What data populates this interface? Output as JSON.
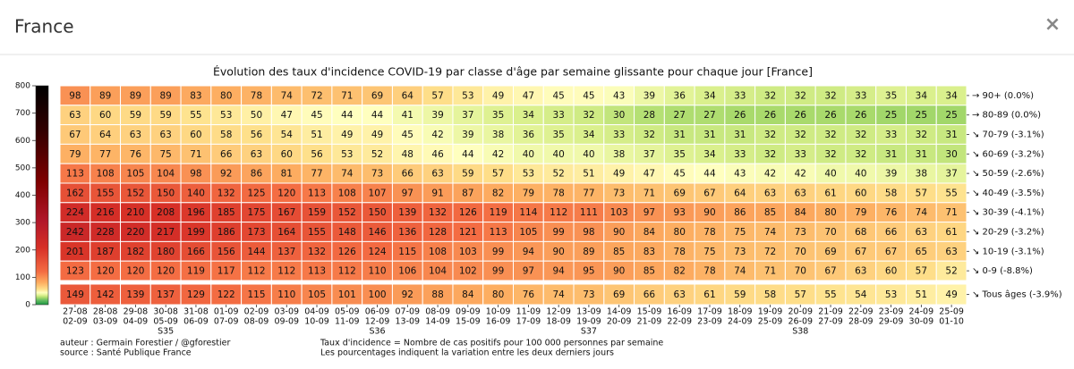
{
  "window": {
    "title": "France",
    "close": "×"
  },
  "chart_data": {
    "type": "heatmap",
    "title": "Évolution des taux d'incidence COVID-19 par classe d'âge par semaine glissante pour chaque jour [France]",
    "categories": [
      [
        "27-08",
        "02-09"
      ],
      [
        "28-08",
        "03-09"
      ],
      [
        "29-08",
        "04-09"
      ],
      [
        "30-08",
        "05-09"
      ],
      [
        "31-08",
        "06-09"
      ],
      [
        "01-09",
        "07-09"
      ],
      [
        "02-09",
        "08-09"
      ],
      [
        "03-09",
        "09-09"
      ],
      [
        "04-09",
        "10-09"
      ],
      [
        "05-09",
        "11-09"
      ],
      [
        "06-09",
        "12-09"
      ],
      [
        "07-09",
        "13-09"
      ],
      [
        "08-09",
        "14-09"
      ],
      [
        "09-09",
        "15-09"
      ],
      [
        "10-09",
        "16-09"
      ],
      [
        "11-09",
        "17-09"
      ],
      [
        "12-09",
        "18-09"
      ],
      [
        "13-09",
        "19-09"
      ],
      [
        "14-09",
        "20-09"
      ],
      [
        "15-09",
        "21-09"
      ],
      [
        "16-09",
        "22-09"
      ],
      [
        "17-09",
        "23-09"
      ],
      [
        "18-09",
        "24-09"
      ],
      [
        "19-09",
        "25-09"
      ],
      [
        "20-09",
        "26-09"
      ],
      [
        "21-09",
        "27-09"
      ],
      [
        "22-09",
        "28-09"
      ],
      [
        "23-09",
        "29-09"
      ],
      [
        "24-09",
        "30-09"
      ],
      [
        "25-09",
        "01-10"
      ]
    ],
    "week_labels": [
      null,
      null,
      null,
      "S35",
      null,
      null,
      null,
      null,
      null,
      null,
      "S36",
      null,
      null,
      null,
      null,
      null,
      null,
      "S37",
      null,
      null,
      null,
      null,
      null,
      null,
      "S38",
      null,
      null,
      null,
      null,
      null
    ],
    "rows": [
      "→ 90+ (0.0%)",
      "→ 80-89 (0.0%)",
      "↘ 70-79 (-3.1%)",
      "↘ 60-69 (-3.2%)",
      "↘ 50-59 (-2.6%)",
      "↘ 40-49 (-3.5%)",
      "↘ 30-39 (-4.1%)",
      "↘ 20-29 (-3.2%)",
      "↘ 10-19 (-3.1%)",
      "↘ 0-9 (-8.8%)"
    ],
    "values": [
      [
        98,
        89,
        89,
        89,
        83,
        80,
        78,
        74,
        72,
        71,
        69,
        64,
        57,
        53,
        49,
        47,
        45,
        45,
        43,
        39,
        36,
        34,
        33,
        32,
        32,
        32,
        33,
        35,
        34,
        34
      ],
      [
        63,
        60,
        59,
        59,
        55,
        53,
        50,
        47,
        45,
        44,
        44,
        41,
        39,
        37,
        35,
        34,
        33,
        32,
        30,
        28,
        27,
        27,
        26,
        26,
        26,
        26,
        26,
        25,
        25,
        25
      ],
      [
        67,
        64,
        63,
        63,
        60,
        58,
        56,
        54,
        51,
        49,
        49,
        45,
        42,
        39,
        38,
        36,
        35,
        34,
        33,
        32,
        31,
        31,
        31,
        32,
        32,
        32,
        32,
        33,
        32,
        31
      ],
      [
        79,
        77,
        76,
        75,
        71,
        66,
        63,
        60,
        56,
        53,
        52,
        48,
        46,
        44,
        42,
        40,
        40,
        40,
        38,
        37,
        35,
        34,
        33,
        32,
        33,
        32,
        32,
        31,
        31,
        30
      ],
      [
        113,
        108,
        105,
        104,
        98,
        92,
        86,
        81,
        77,
        74,
        73,
        66,
        63,
        59,
        57,
        53,
        52,
        51,
        49,
        47,
        45,
        44,
        43,
        42,
        42,
        40,
        40,
        39,
        38,
        37
      ],
      [
        162,
        155,
        152,
        150,
        140,
        132,
        125,
        120,
        113,
        108,
        107,
        97,
        91,
        87,
        82,
        79,
        78,
        77,
        73,
        71,
        69,
        67,
        64,
        63,
        63,
        61,
        60,
        58,
        57,
        55
      ],
      [
        224,
        216,
        210,
        208,
        196,
        185,
        175,
        167,
        159,
        152,
        150,
        139,
        132,
        126,
        119,
        114,
        112,
        111,
        103,
        97,
        93,
        90,
        86,
        85,
        84,
        80,
        79,
        76,
        74,
        71
      ],
      [
        242,
        228,
        220,
        217,
        199,
        186,
        173,
        164,
        155,
        148,
        146,
        136,
        128,
        121,
        113,
        105,
        99,
        98,
        90,
        84,
        80,
        78,
        75,
        74,
        73,
        70,
        68,
        66,
        63,
        61
      ],
      [
        201,
        187,
        182,
        180,
        166,
        156,
        144,
        137,
        132,
        126,
        124,
        115,
        108,
        103,
        99,
        94,
        90,
        89,
        85,
        83,
        78,
        75,
        73,
        72,
        70,
        69,
        67,
        67,
        65,
        63
      ],
      [
        123,
        120,
        120,
        120,
        119,
        117,
        112,
        112,
        113,
        112,
        110,
        106,
        104,
        102,
        99,
        97,
        94,
        95,
        90,
        85,
        82,
        78,
        74,
        71,
        70,
        67,
        63,
        60,
        57,
        52
      ]
    ],
    "total": {
      "label": "↘ Tous âges (-3.9%)",
      "values": [
        149,
        142,
        139,
        137,
        129,
        122,
        115,
        110,
        105,
        101,
        100,
        92,
        88,
        84,
        80,
        76,
        74,
        73,
        69,
        66,
        63,
        61,
        59,
        58,
        57,
        55,
        54,
        53,
        51,
        49
      ]
    },
    "clim": [
      0,
      800
    ],
    "cticks": [
      0,
      100,
      200,
      300,
      400,
      500,
      600,
      700,
      800
    ],
    "notes": [
      "auteur : Germain Forestier / @gforestier",
      "source : Santé Publique France"
    ],
    "definitions": [
      "Taux d'incidence = Nombre de cas positifs pour 100 000 personnes par semaine",
      "Les pourcentages indiquent la variation entre les deux derniers jours"
    ]
  }
}
